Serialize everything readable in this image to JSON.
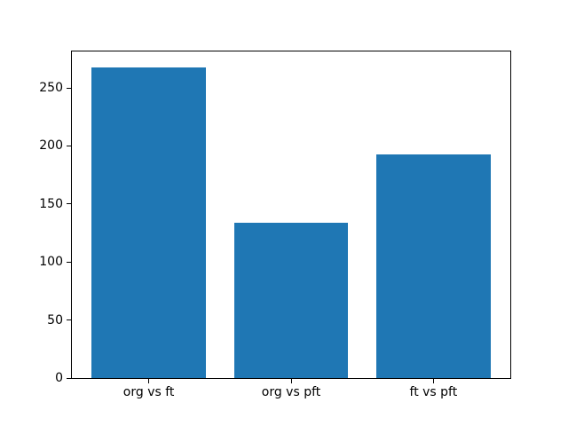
{
  "chart_data": {
    "type": "bar",
    "categories": [
      "org vs ft",
      "org vs pft",
      "ft vs pft"
    ],
    "values": [
      268,
      134,
      193
    ],
    "yticks": [
      0,
      50,
      100,
      150,
      200,
      250
    ],
    "ylim": [
      0,
      281.4
    ],
    "xlim": [
      -0.54,
      2.54
    ],
    "bar_width": 0.8,
    "bar_color": "#1f77b4",
    "grid": false,
    "legend": null
  },
  "figure": {
    "background": "#ffffff",
    "spine_color": "#000000",
    "tick_color": "#000000",
    "text_color": "#000000"
  }
}
